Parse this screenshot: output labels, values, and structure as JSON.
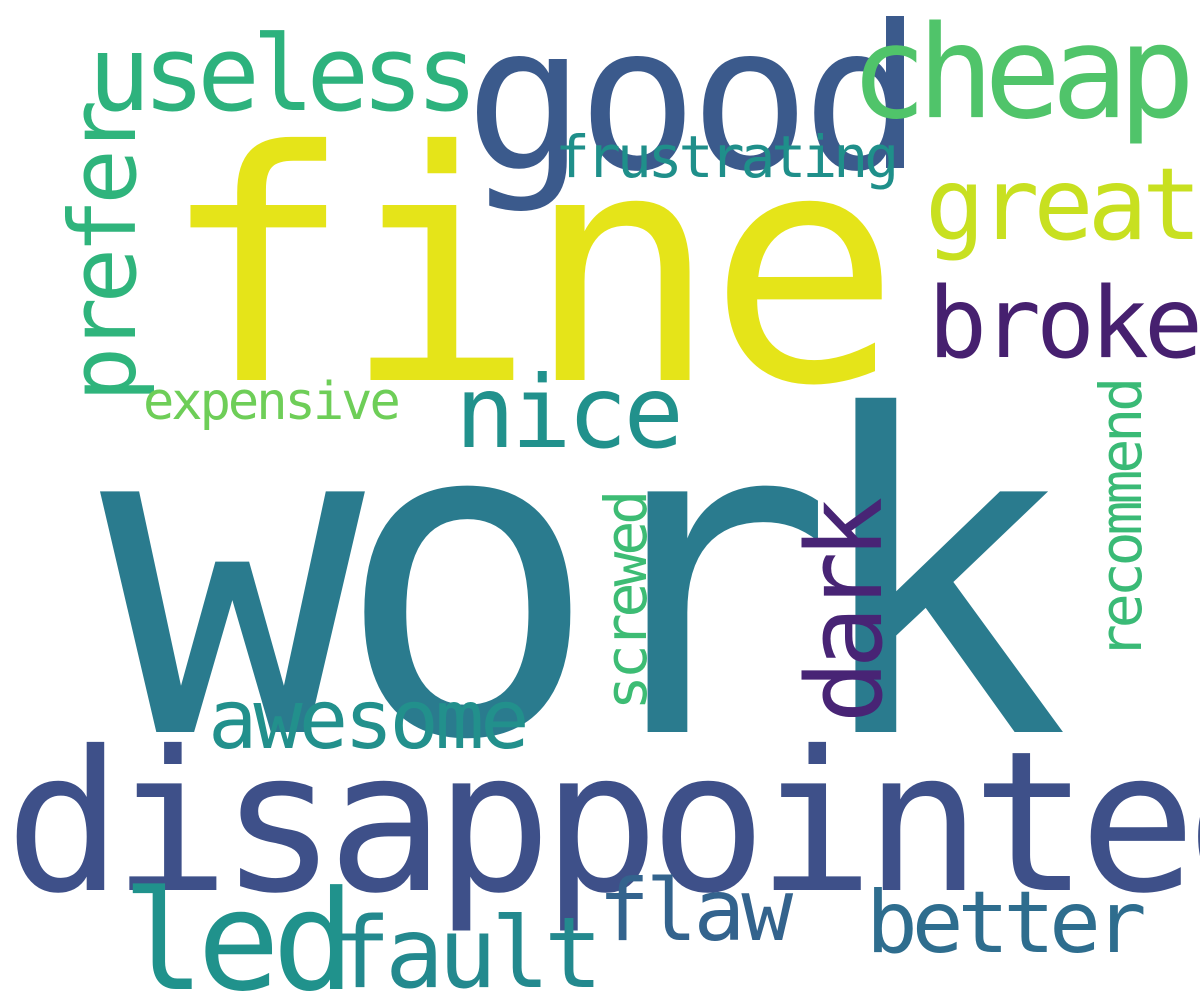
{
  "words": [
    {
      "text": "work",
      "color": "#2a7b8e",
      "rotated": false
    },
    {
      "text": "fine",
      "color": "#e5e419",
      "rotated": false
    },
    {
      "text": "disappointed",
      "color": "#3e5089",
      "rotated": false
    },
    {
      "text": "good",
      "color": "#3b5a8c",
      "rotated": false
    },
    {
      "text": "cheap",
      "color": "#50c46a",
      "rotated": false
    },
    {
      "text": "useless",
      "color": "#2db27d",
      "rotated": false
    },
    {
      "text": "prefer",
      "color": "#2fb47c",
      "rotated": true
    },
    {
      "text": "great",
      "color": "#c8e020",
      "rotated": false
    },
    {
      "text": "frustrating",
      "color": "#1f8f8a",
      "rotated": false
    },
    {
      "text": "broke",
      "color": "#46206f",
      "rotated": false
    },
    {
      "text": "nice",
      "color": "#21918c",
      "rotated": false
    },
    {
      "text": "expensive",
      "color": "#6ece58",
      "rotated": false
    },
    {
      "text": "dark",
      "color": "#482475",
      "rotated": true
    },
    {
      "text": "screwed",
      "color": "#3dbc74",
      "rotated": true
    },
    {
      "text": "recommend",
      "color": "#3aba76",
      "rotated": true
    },
    {
      "text": "awesome",
      "color": "#22908c",
      "rotated": false
    },
    {
      "text": "led",
      "color": "#20928c",
      "rotated": false
    },
    {
      "text": "fault",
      "color": "#23898e",
      "rotated": false
    },
    {
      "text": "flaw",
      "color": "#33638d",
      "rotated": false
    },
    {
      "text": "better",
      "color": "#2e6d8e",
      "rotated": false
    }
  ]
}
